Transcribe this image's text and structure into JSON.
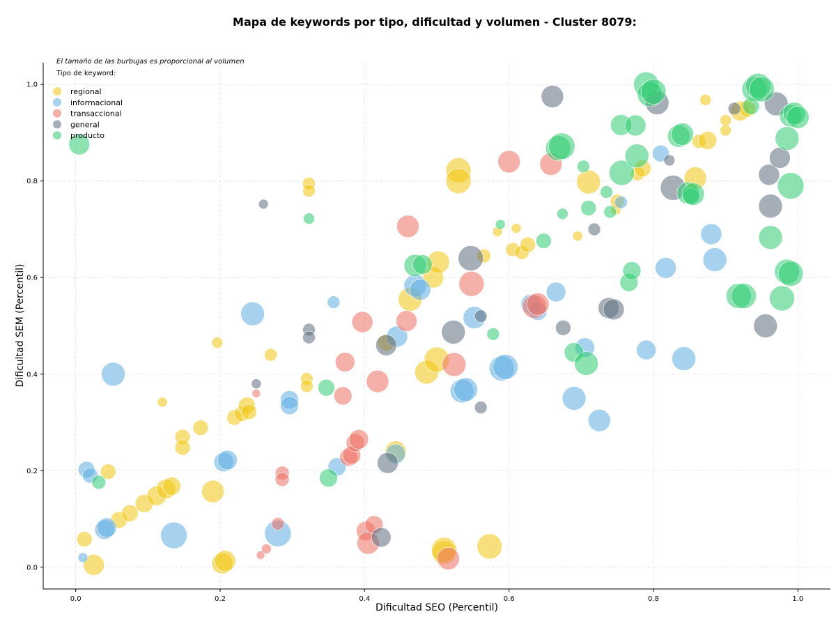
{
  "chart_data": {
    "type": "scatter",
    "title": "Mapa de keywords por tipo, dificultad y volumen - Cluster 8079:",
    "xlabel": "Dificultad SEO (Percentil)",
    "ylabel": "Dificultad SEM (Percentil)",
    "xlim": [
      -0.045,
      1.045
    ],
    "ylim": [
      -0.045,
      1.045
    ],
    "xticks": [
      0.0,
      0.2,
      0.4,
      0.6,
      0.8,
      1.0
    ],
    "yticks": [
      0.0,
      0.2,
      0.4,
      0.6,
      0.8,
      1.0
    ],
    "xtick_labels": [
      "0.0",
      "0.2",
      "0.4",
      "0.6",
      "0.8",
      "1.0"
    ],
    "ytick_labels": [
      "0.0",
      "0.2",
      "0.4",
      "0.6",
      "0.8",
      "1.0"
    ],
    "grid": true,
    "legend_position": "top-left",
    "note": "El tamaño de las burbujas es proporcional al volumen",
    "legend_title": "Tipo de keyword:",
    "series": [
      {
        "name": "regional",
        "color": "#f1c40f",
        "points": [
          [
            0.012,
            0.058,
            11
          ],
          [
            0.025,
            0.005,
            15
          ],
          [
            0.045,
            0.198,
            11
          ],
          [
            0.06,
            0.098,
            12
          ],
          [
            0.075,
            0.112,
            12
          ],
          [
            0.095,
            0.132,
            13
          ],
          [
            0.112,
            0.148,
            14
          ],
          [
            0.125,
            0.162,
            14
          ],
          [
            0.133,
            0.168,
            13
          ],
          [
            0.12,
            0.342,
            7
          ],
          [
            0.148,
            0.27,
            11
          ],
          [
            0.148,
            0.248,
            11
          ],
          [
            0.173,
            0.289,
            11
          ],
          [
            0.19,
            0.157,
            16
          ],
          [
            0.196,
            0.465,
            8
          ],
          [
            0.203,
            0.008,
            15
          ],
          [
            0.207,
            0.013,
            15
          ],
          [
            0.22,
            0.31,
            11
          ],
          [
            0.23,
            0.318,
            11
          ],
          [
            0.237,
            0.335,
            12
          ],
          [
            0.24,
            0.322,
            11
          ],
          [
            0.27,
            0.44,
            9
          ],
          [
            0.32,
            0.39,
            9
          ],
          [
            0.32,
            0.375,
            9
          ],
          [
            0.323,
            0.795,
            9
          ],
          [
            0.323,
            0.78,
            9
          ],
          [
            0.43,
            0.465,
            12
          ],
          [
            0.443,
            0.24,
            15
          ],
          [
            0.463,
            0.555,
            17
          ],
          [
            0.486,
            0.404,
            17
          ],
          [
            0.495,
            0.6,
            15
          ],
          [
            0.5,
            0.43,
            18
          ],
          [
            0.502,
            0.632,
            16
          ],
          [
            0.51,
            0.03,
            17
          ],
          [
            0.51,
            0.036,
            18
          ],
          [
            0.53,
            0.822,
            18
          ],
          [
            0.53,
            0.8,
            18
          ],
          [
            0.565,
            0.645,
            10
          ],
          [
            0.573,
            0.043,
            18
          ],
          [
            0.584,
            0.695,
            7
          ],
          [
            0.605,
            0.658,
            10
          ],
          [
            0.61,
            0.702,
            7
          ],
          [
            0.618,
            0.652,
            10
          ],
          [
            0.626,
            0.668,
            11
          ],
          [
            0.695,
            0.686,
            7
          ],
          [
            0.71,
            0.798,
            17
          ],
          [
            0.748,
            0.74,
            7
          ],
          [
            0.75,
            0.758,
            10
          ],
          [
            0.778,
            0.815,
            10
          ],
          [
            0.785,
            0.826,
            12
          ],
          [
            0.858,
            0.806,
            16
          ],
          [
            0.863,
            0.882,
            10
          ],
          [
            0.872,
            0.968,
            8
          ],
          [
            0.875,
            0.884,
            13
          ],
          [
            0.9,
            0.926,
            8
          ],
          [
            0.9,
            0.905,
            8
          ],
          [
            0.92,
            0.945,
            14
          ],
          [
            0.93,
            0.95,
            12
          ]
        ]
      },
      {
        "name": "informacional",
        "color": "#5dade2",
        "points": [
          [
            0.01,
            0.02,
            7
          ],
          [
            0.015,
            0.202,
            12
          ],
          [
            0.02,
            0.19,
            11
          ],
          [
            0.04,
            0.078,
            14
          ],
          [
            0.043,
            0.082,
            14
          ],
          [
            0.052,
            0.4,
            17
          ],
          [
            0.136,
            0.066,
            19
          ],
          [
            0.205,
            0.218,
            14
          ],
          [
            0.21,
            0.222,
            14
          ],
          [
            0.245,
            0.525,
            17
          ],
          [
            0.28,
            0.07,
            19
          ],
          [
            0.296,
            0.347,
            13
          ],
          [
            0.296,
            0.335,
            13
          ],
          [
            0.357,
            0.549,
            9
          ],
          [
            0.362,
            0.208,
            13
          ],
          [
            0.443,
            0.235,
            14
          ],
          [
            0.445,
            0.478,
            15
          ],
          [
            0.47,
            0.583,
            16
          ],
          [
            0.477,
            0.575,
            15
          ],
          [
            0.535,
            0.365,
            17
          ],
          [
            0.54,
            0.368,
            17
          ],
          [
            0.552,
            0.517,
            16
          ],
          [
            0.59,
            0.412,
            18
          ],
          [
            0.595,
            0.415,
            18
          ],
          [
            0.63,
            0.545,
            14
          ],
          [
            0.64,
            0.53,
            13
          ],
          [
            0.665,
            0.57,
            14
          ],
          [
            0.69,
            0.35,
            17
          ],
          [
            0.705,
            0.455,
            14
          ],
          [
            0.725,
            0.304,
            16
          ],
          [
            0.755,
            0.756,
            9
          ],
          [
            0.79,
            0.45,
            14
          ],
          [
            0.81,
            0.857,
            12
          ],
          [
            0.817,
            0.62,
            15
          ],
          [
            0.842,
            0.432,
            17
          ],
          [
            0.88,
            0.69,
            15
          ],
          [
            0.885,
            0.637,
            17
          ]
        ]
      },
      {
        "name": "transaccional",
        "color": "#ec7063",
        "points": [
          [
            0.25,
            0.36,
            6
          ],
          [
            0.256,
            0.025,
            6
          ],
          [
            0.264,
            0.038,
            7
          ],
          [
            0.28,
            0.09,
            9
          ],
          [
            0.286,
            0.195,
            10
          ],
          [
            0.286,
            0.182,
            10
          ],
          [
            0.37,
            0.355,
            13
          ],
          [
            0.373,
            0.425,
            14
          ],
          [
            0.378,
            0.228,
            13
          ],
          [
            0.382,
            0.232,
            13
          ],
          [
            0.387,
            0.258,
            13
          ],
          [
            0.392,
            0.265,
            14
          ],
          [
            0.397,
            0.508,
            15
          ],
          [
            0.402,
            0.075,
            14
          ],
          [
            0.405,
            0.05,
            16
          ],
          [
            0.413,
            0.088,
            13
          ],
          [
            0.418,
            0.385,
            16
          ],
          [
            0.458,
            0.51,
            15
          ],
          [
            0.46,
            0.706,
            16
          ],
          [
            0.524,
            0.42,
            17
          ],
          [
            0.516,
            0.018,
            16
          ],
          [
            0.548,
            0.587,
            18
          ],
          [
            0.6,
            0.84,
            16
          ],
          [
            0.635,
            0.54,
            17
          ],
          [
            0.64,
            0.545,
            16
          ],
          [
            0.658,
            0.835,
            16
          ]
        ]
      },
      {
        "name": "general",
        "color": "#5d6d7e",
        "points": [
          [
            0.25,
            0.38,
            7
          ],
          [
            0.26,
            0.752,
            7
          ],
          [
            0.323,
            0.492,
            9
          ],
          [
            0.323,
            0.476,
            9
          ],
          [
            0.43,
            0.46,
            15
          ],
          [
            0.432,
            0.216,
            15
          ],
          [
            0.423,
            0.062,
            14
          ],
          [
            0.523,
            0.487,
            17
          ],
          [
            0.547,
            0.64,
            18
          ],
          [
            0.561,
            0.331,
            9
          ],
          [
            0.561,
            0.52,
            9
          ],
          [
            0.66,
            0.975,
            16
          ],
          [
            0.675,
            0.496,
            11
          ],
          [
            0.718,
            0.7,
            9
          ],
          [
            0.738,
            0.537,
            15
          ],
          [
            0.745,
            0.534,
            15
          ],
          [
            0.805,
            0.962,
            17
          ],
          [
            0.822,
            0.843,
            8
          ],
          [
            0.827,
            0.786,
            18
          ],
          [
            0.912,
            0.95,
            9
          ],
          [
            0.955,
            0.5,
            17
          ],
          [
            0.96,
            0.813,
            15
          ],
          [
            0.962,
            0.748,
            17
          ],
          [
            0.97,
            0.96,
            17
          ],
          [
            0.975,
            0.848,
            15
          ]
        ]
      },
      {
        "name": "producto",
        "color": "#2ecc71",
        "points": [
          [
            0.005,
            0.876,
            15
          ],
          [
            0.032,
            0.176,
            10
          ],
          [
            0.323,
            0.722,
            8
          ],
          [
            0.35,
            0.185,
            13
          ],
          [
            0.347,
            0.372,
            12
          ],
          [
            0.47,
            0.625,
            16
          ],
          [
            0.48,
            0.627,
            14
          ],
          [
            0.578,
            0.483,
            9
          ],
          [
            0.588,
            0.71,
            7
          ],
          [
            0.648,
            0.676,
            11
          ],
          [
            0.668,
            0.868,
            18
          ],
          [
            0.673,
            0.872,
            19
          ],
          [
            0.674,
            0.732,
            8
          ],
          [
            0.69,
            0.445,
            14
          ],
          [
            0.703,
            0.83,
            9
          ],
          [
            0.707,
            0.422,
            17
          ],
          [
            0.71,
            0.744,
            11
          ],
          [
            0.735,
            0.777,
            9
          ],
          [
            0.74,
            0.736,
            9
          ],
          [
            0.755,
            0.916,
            15
          ],
          [
            0.756,
            0.817,
            18
          ],
          [
            0.766,
            0.59,
            13
          ],
          [
            0.77,
            0.614,
            13
          ],
          [
            0.775,
            0.915,
            15
          ],
          [
            0.777,
            0.852,
            17
          ],
          [
            0.79,
            1.0,
            18
          ],
          [
            0.795,
            0.98,
            18
          ],
          [
            0.8,
            0.985,
            18
          ],
          [
            0.835,
            0.893,
            16
          ],
          [
            0.84,
            0.897,
            16
          ],
          [
            0.848,
            0.775,
            16
          ],
          [
            0.852,
            0.768,
            12
          ],
          [
            0.855,
            0.773,
            16
          ],
          [
            0.918,
            0.562,
            18
          ],
          [
            0.925,
            0.562,
            18
          ],
          [
            0.935,
            0.955,
            12
          ],
          [
            0.94,
            0.99,
            18
          ],
          [
            0.945,
            0.997,
            18
          ],
          [
            0.95,
            0.99,
            18
          ],
          [
            0.962,
            0.683,
            17
          ],
          [
            0.978,
            0.557,
            18
          ],
          [
            0.985,
            0.888,
            17
          ],
          [
            0.985,
            0.612,
            18
          ],
          [
            0.99,
            0.608,
            18
          ],
          [
            0.99,
            0.935,
            16
          ],
          [
            0.995,
            0.94,
            16
          ],
          [
            1.0,
            0.932,
            16
          ],
          [
            0.99,
            0.79,
            19
          ]
        ]
      }
    ]
  }
}
